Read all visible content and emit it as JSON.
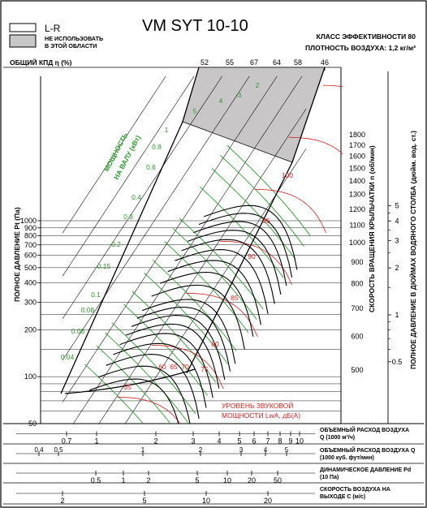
{
  "chart_data": {
    "type": "line",
    "title": "VM SYT 10-10",
    "efficiency_class": "КЛАСС ЭФФЕКТИВНОСТИ 80",
    "air_density": "ПЛОТНОСТЬ ВОЗДУХА: 1,2 кг/м³",
    "legend": [
      {
        "name": "L-R",
        "color": "#ffffff"
      },
      {
        "name": "НЕ ИСПОЛЬЗОВАТЬ В ЭТОЙ ОБЛАСТИ",
        "color": "#c8c6c6"
      }
    ],
    "efficiency_label": "ОБЩИЙ КПД η (%)",
    "efficiency_ticks": [
      "52",
      "55",
      "67",
      "64",
      "58",
      "46"
    ],
    "ylabel": "ПОЛНОЕ ДАВЛЕНИЕ Pt (Па)",
    "y_scale": "log",
    "ylim": [
      50,
      1400
    ],
    "y_ticks": [
      50,
      100,
      200,
      300,
      400,
      500,
      600,
      700,
      800,
      900,
      1000
    ],
    "rpm_label": "СКОРОСТЬ ВРАЩЕНИЯ КРЫЛЬЧАТКИ n (об/мин)",
    "rpm_ticks": [
      500,
      600,
      700,
      800,
      900,
      1000,
      1100,
      1200,
      1300,
      1400,
      1500,
      1600,
      1700,
      1800
    ],
    "inwg_label": "ПОЛНОЕ ДАВЛЕНИЕ В ДЮЙМАХ ВОДЯНОГО СТОЛБА (дюйм. вод. ст.)",
    "inwg_ticks": [
      "5",
      "4",
      "3",
      "2",
      "1",
      "0.5"
    ],
    "power_label": "МОЩНОСТЬ НА ВАЛУ (кВт)",
    "power_values": [
      "5",
      "4",
      "3",
      "2",
      "1",
      "0.8",
      "0.6",
      "0.4",
      "0.3",
      "0.2",
      "0.15",
      "0.1",
      "0.08",
      "0.06",
      "0.04"
    ],
    "sound_label": "УРОВЕНЬ ЗВУКОВОЙ МОЩНОСТИ LwA, дБ(A)",
    "sound_values": [
      "100",
      "95",
      "90",
      "85",
      "80",
      "75",
      "70",
      "65",
      "60",
      "55"
    ],
    "x_axes": [
      {
        "label": "ОБЪЕМНЫЙ РАСХОД ВОЗДУХА Q (1000 м³/ч)",
        "ticks": [
          "0.7",
          "1",
          "2",
          "3",
          "4",
          "5",
          "6",
          "7",
          "8",
          "9",
          "10"
        ]
      },
      {
        "label": "ОБЪЕМНЫЙ РАСХОД ВОЗДУХА Q (1000 куб. фут/мин)",
        "ticks": [
          "0.4",
          "0.5",
          "1",
          "2",
          "3",
          "4",
          "5"
        ]
      },
      {
        "label": "ДИНАМИЧЕСКОЕ ДАВЛЕНИЕ Pd (10 Па)",
        "ticks": [
          "0.5",
          "1",
          "2",
          "5",
          "10",
          "20",
          "50"
        ]
      },
      {
        "label": "СКОРОСТЬ ВОЗДУХА НА ВЫХОДЕ C (м/с)",
        "ticks": [
          "2",
          "5",
          "10",
          "20"
        ]
      }
    ]
  }
}
